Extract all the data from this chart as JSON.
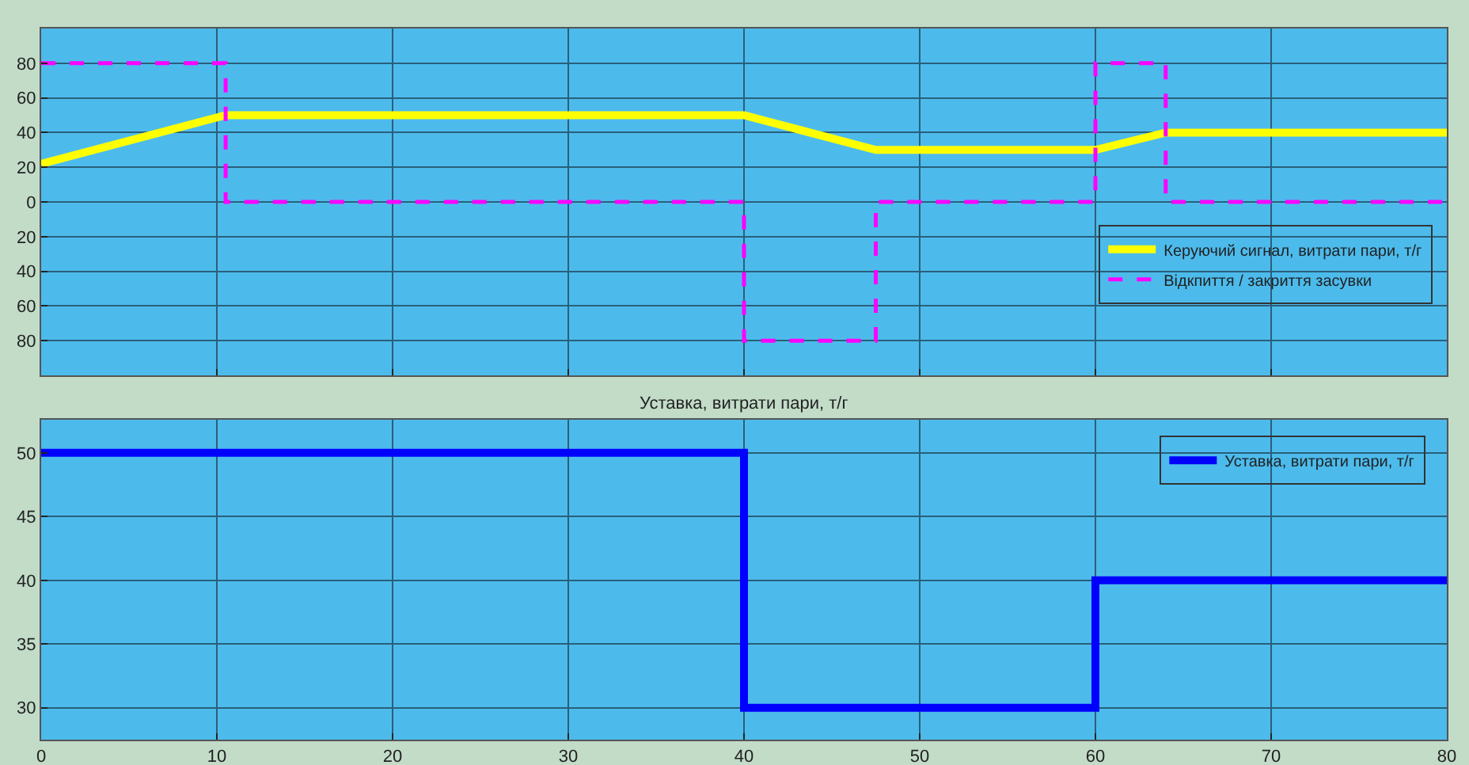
{
  "chart_data": [
    {
      "type": "line",
      "xlim": [
        0,
        80
      ],
      "ylim": [
        -100,
        100
      ],
      "xticks": [
        0,
        10,
        20,
        30,
        40,
        50,
        60,
        70,
        80
      ],
      "yticks": [
        {
          "value": -80,
          "label": "80"
        },
        {
          "value": -60,
          "label": "60"
        },
        {
          "value": -40,
          "label": "40"
        },
        {
          "value": -20,
          "label": "20"
        },
        0,
        20,
        40,
        60,
        80
      ],
      "tick_labels": "y",
      "grid": true,
      "legend": "right",
      "marker": "none",
      "series": [
        {
          "name": "Керуючий сигнал, витрати пари, т/г",
          "color": "#ffff00",
          "line_style": "solid",
          "x": [
            0,
            10.5,
            40,
            47.5,
            60,
            64,
            80
          ],
          "values": [
            22,
            50,
            50,
            30,
            30,
            40,
            40
          ]
        },
        {
          "name": "Відкпиття / закриття засувки",
          "type": "step",
          "color": "#ff00ff",
          "line_style": "dashed",
          "x": [
            0,
            10.5,
            40,
            47.5,
            60,
            64,
            80
          ],
          "values": [
            80,
            0,
            -80,
            0,
            80,
            0,
            0
          ]
        }
      ]
    },
    {
      "type": "step",
      "title": "Уставка, витрати пари, т/г",
      "xlim": [
        0,
        80
      ],
      "ylim": [
        27.5,
        52.6
      ],
      "xticks": [
        0,
        10,
        20,
        30,
        40,
        50,
        60,
        70,
        80
      ],
      "yticks": [
        30,
        35,
        40,
        45,
        50
      ],
      "grid": true,
      "legend": "top right",
      "marker": "none",
      "series": [
        {
          "name": "Уставка, витрати пари, т/г",
          "color": "#0000ff",
          "line_style": "solid",
          "x": [
            0,
            40,
            60,
            80
          ],
          "values": [
            50,
            30,
            40,
            40
          ]
        }
      ]
    }
  ]
}
